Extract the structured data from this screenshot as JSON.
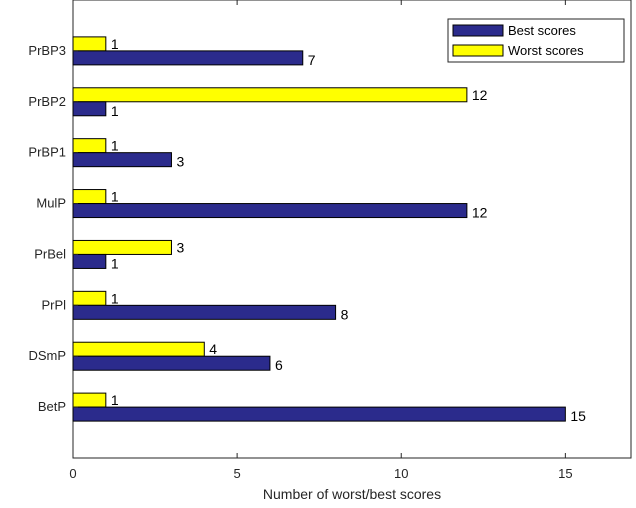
{
  "chart_data": {
    "type": "bar",
    "orientation": "horizontal",
    "categories": [
      "BetP",
      "DSmP",
      "PrPl",
      "PrBel",
      "MulP",
      "PrBP1",
      "PrBP2",
      "PrBP3"
    ],
    "series": [
      {
        "name": "Best scores",
        "values": [
          15,
          6,
          8,
          1,
          12,
          3,
          1,
          7
        ],
        "color": "#2b2b8c"
      },
      {
        "name": "Worst scores",
        "values": [
          1,
          4,
          1,
          3,
          1,
          1,
          12,
          1
        ],
        "color": "#ffff00"
      }
    ],
    "xlabel": "Number of worst/best scores",
    "ylabel": "",
    "xlim": [
      0,
      17
    ],
    "xticks": [
      0,
      5,
      10,
      15
    ],
    "grid": false,
    "legend_position": "top-right"
  }
}
